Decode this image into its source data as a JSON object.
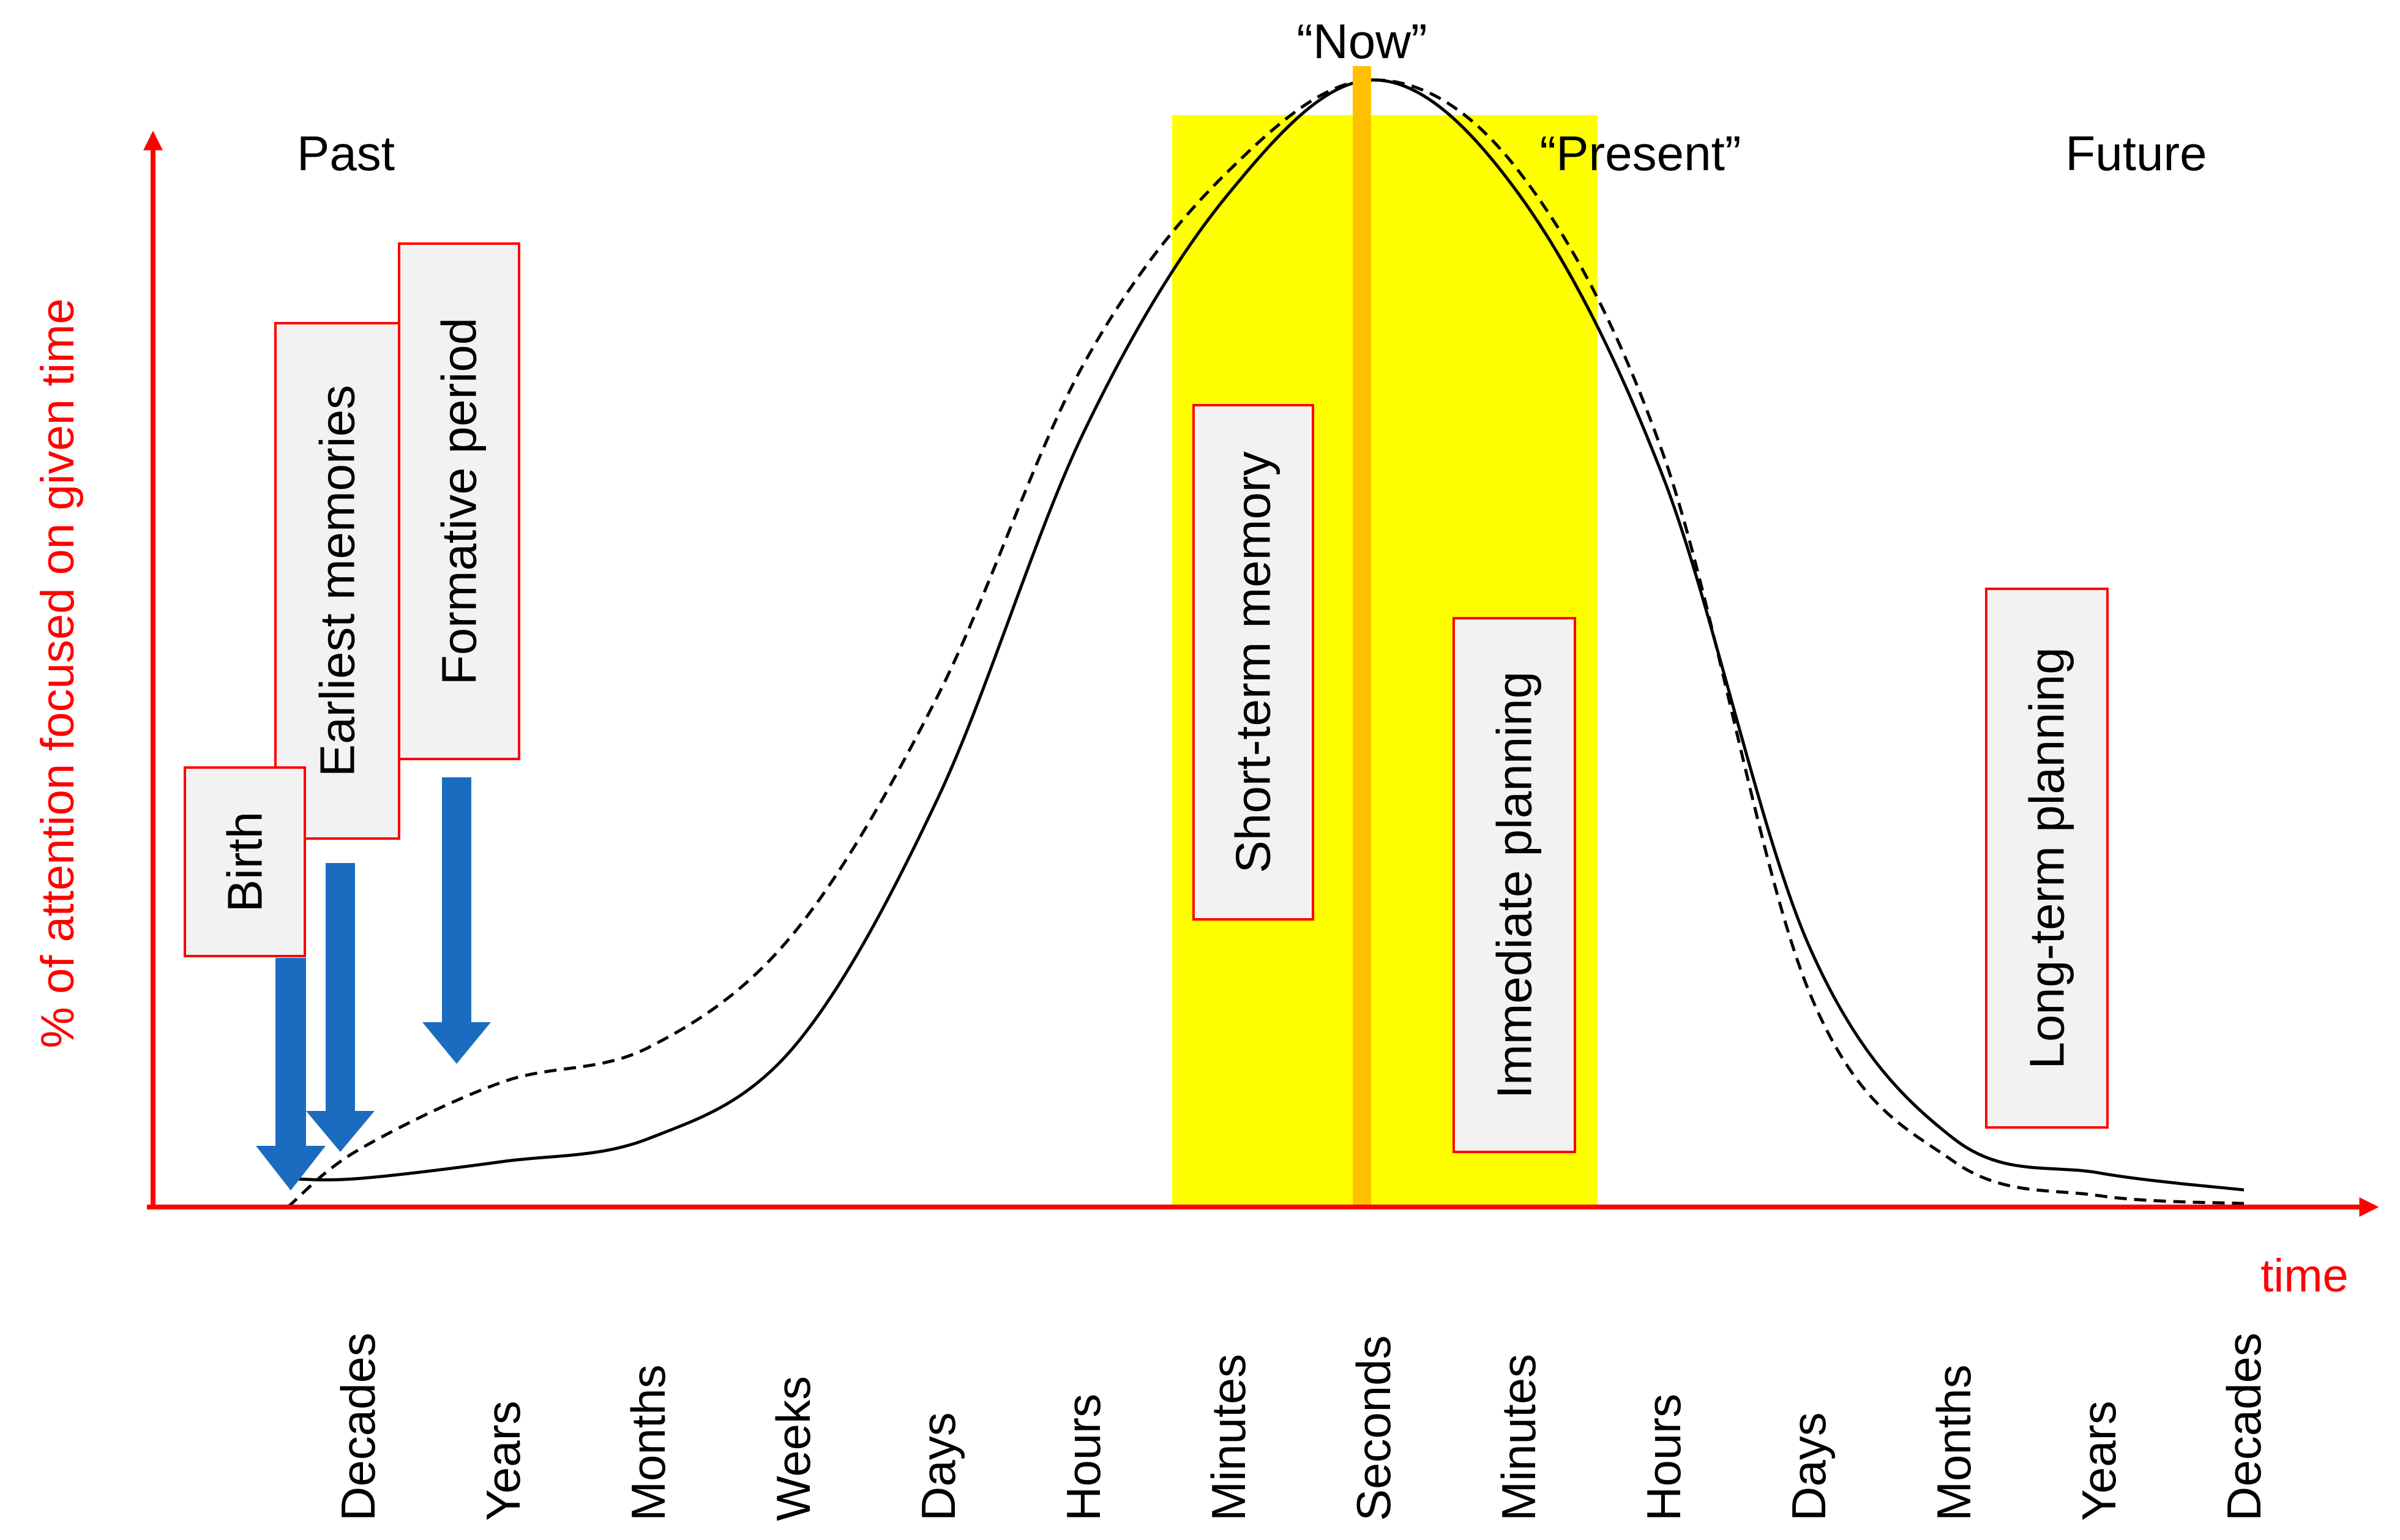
{
  "colors": {
    "axis": "#ff0000",
    "present_band": "#ffff00",
    "now_line": "#ffc000",
    "arrow": "#1b6cc1",
    "box_fill": "#f2f2f2",
    "box_border": "#ff0000",
    "curve": "#000000"
  },
  "axes": {
    "y_label": "% of attention focused on given time",
    "x_label": "time"
  },
  "regions": {
    "past": "Past",
    "present": "“Present”",
    "future": "Future",
    "now": "“Now”"
  },
  "time_ticks": [
    "Decades",
    "Years",
    "Months",
    "Weeks",
    "Days",
    "Hours",
    "Minutes",
    "Seconds",
    "Minutes",
    "Hours",
    "Days",
    "Months",
    "Years",
    "Decades"
  ],
  "boxes": {
    "birth": "Birth",
    "earliest_memories": "Earliest memories",
    "formative_period": "Formative period",
    "short_term_memory": "Short-term memory",
    "immediate_planning": "Immediate planning",
    "long_term_planning": "Long-term planning"
  },
  "chart_data": {
    "type": "line",
    "title": "",
    "xlabel": "time",
    "ylabel": "% of attention focused on given time",
    "categories": [
      "Decades",
      "Years",
      "Months",
      "Weeks",
      "Days",
      "Hours",
      "Minutes",
      "Seconds",
      "Minutes",
      "Hours",
      "Days",
      "Months",
      "Years",
      "Decades"
    ],
    "ylim": [
      0,
      100
    ],
    "series": [
      {
        "name": "solid",
        "values": [
          2.5,
          4,
          6,
          14,
          36,
          68,
          89,
          99,
          89,
          64,
          23,
          6,
          3,
          1.5
        ]
      },
      {
        "name": "dashed",
        "values": [
          5,
          11,
          14,
          24,
          45,
          74,
          91,
          99,
          91,
          66,
          19,
          4,
          1,
          0.3
        ]
      }
    ]
  }
}
